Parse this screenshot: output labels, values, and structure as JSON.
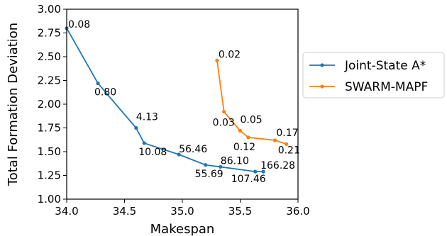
{
  "chart_data": {
    "type": "line",
    "title": "",
    "xlabel": "Makespan",
    "ylabel": "Total Formation Deviation",
    "xlim": [
      34.0,
      36.0
    ],
    "ylim": [
      1.0,
      3.0
    ],
    "x_ticks": [
      "34.0",
      "34.5",
      "35.0",
      "35.5",
      "36.0"
    ],
    "y_ticks": [
      "1.00",
      "1.25",
      "1.50",
      "1.75",
      "2.00",
      "2.25",
      "2.50",
      "2.75",
      "3.00"
    ],
    "grid": false,
    "legend_position": "right",
    "series": [
      {
        "name": "Joint-State A*",
        "color": "#1f77b4",
        "points": [
          {
            "x": 34.0,
            "y": 2.8,
            "label": "0.08"
          },
          {
            "x": 34.27,
            "y": 2.22,
            "label": "0.80"
          },
          {
            "x": 34.6,
            "y": 1.75,
            "label": "4.13"
          },
          {
            "x": 34.67,
            "y": 1.59,
            "label": "10.08"
          },
          {
            "x": 34.97,
            "y": 1.47,
            "label": "56.46"
          },
          {
            "x": 35.2,
            "y": 1.36,
            "label": "55.69"
          },
          {
            "x": 35.33,
            "y": 1.34,
            "label": "86.10"
          },
          {
            "x": 35.63,
            "y": 1.29,
            "label": "107.46"
          },
          {
            "x": 35.7,
            "y": 1.29,
            "label": "166.28"
          }
        ]
      },
      {
        "name": "SWARM-MAPF",
        "color": "#ff7f0e",
        "points": [
          {
            "x": 35.3,
            "y": 2.46,
            "label": "0.02"
          },
          {
            "x": 35.36,
            "y": 1.92,
            "label": "0.03"
          },
          {
            "x": 35.5,
            "y": 1.72,
            "label": "0.05"
          },
          {
            "x": 35.57,
            "y": 1.65,
            "label": "0.12"
          },
          {
            "x": 35.8,
            "y": 1.62,
            "label": "0.17"
          },
          {
            "x": 35.9,
            "y": 1.58,
            "label": "0.21"
          }
        ]
      }
    ]
  }
}
